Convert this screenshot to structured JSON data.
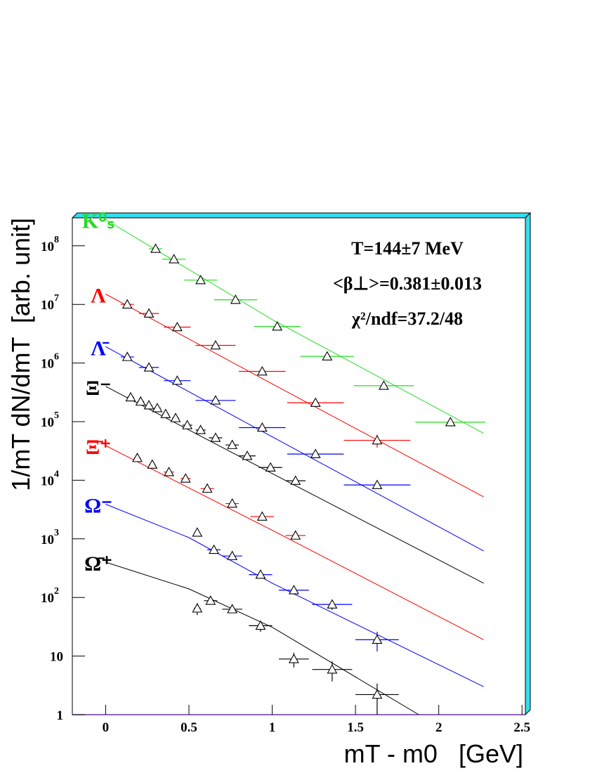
{
  "chart_data": {
    "type": "scatter",
    "xlabel": "mT - m0   [GeV]",
    "ylabel": "1/mT dN/dmT  [arb. unit]",
    "annotations": [
      "T=144±7 MeV",
      "<β⊥>=0.381±0.013",
      "χ²/ndf=37.2/48"
    ],
    "xlim": [
      -0.2,
      2.52
    ],
    "ylim": [
      1,
      300000000
    ],
    "log_y": true,
    "xticks": [
      0,
      0.5,
      1,
      1.5,
      2,
      2.5
    ],
    "yticks": [
      1,
      10,
      {
        "value": 100,
        "label": "10",
        "sup": "2"
      },
      {
        "value": 1000,
        "label": "10",
        "sup": "3"
      },
      {
        "value": 10000,
        "label": "10",
        "sup": "4"
      },
      {
        "value": 100000,
        "label": "10",
        "sup": "5"
      },
      {
        "value": 1000000,
        "label": "10",
        "sup": "6"
      },
      {
        "value": 10000000,
        "label": "10",
        "sup": "7"
      },
      {
        "value": 100000000,
        "label": "10",
        "sup": "8"
      }
    ],
    "series": [
      {
        "name": "K⁰ₛ",
        "color": "#22dd22",
        "x": [
          0.3,
          0.41,
          0.57,
          0.78,
          1.03,
          1.33,
          1.67,
          2.07
        ],
        "x_errors": [
          0.04,
          0.07,
          0.1,
          0.13,
          0.14,
          0.16,
          0.18,
          0.21
        ],
        "values": [
          89000000,
          59000000,
          26000000,
          12000000,
          4200000,
          1300000,
          410000,
          98000
        ],
        "y_errors": [
          3000000,
          2000000,
          1000000,
          500000,
          200000,
          80000,
          30000,
          15000
        ],
        "fit": {
          "x": [
            0,
            1.0,
            2.27
          ],
          "values": [
            280000000,
            5500000,
            63000
          ]
        }
      },
      {
        "name": "Λ",
        "color": "#ff0000",
        "x": [
          0.13,
          0.26,
          0.43,
          0.66,
          0.94,
          1.26,
          1.63
        ],
        "x_errors": [
          0.04,
          0.06,
          0.08,
          0.12,
          0.14,
          0.17,
          0.2
        ],
        "values": [
          10000000,
          7000000,
          4100000,
          2000000,
          720000,
          210000,
          48000
        ],
        "y_errors": [
          300000,
          200000,
          150000,
          80000,
          30000,
          15000,
          12000
        ],
        "fit": {
          "x": [
            0,
            1.0,
            2.27
          ],
          "values": [
            15000000,
            440000,
            5200
          ]
        }
      },
      {
        "name": "Λ̄",
        "color": "#0000ff",
        "x": [
          0.13,
          0.26,
          0.43,
          0.66,
          0.94,
          1.26,
          1.63
        ],
        "x_errors": [
          0.04,
          0.06,
          0.08,
          0.12,
          0.14,
          0.17,
          0.2
        ],
        "values": [
          1270000,
          840000,
          500000,
          230000,
          79000,
          28000,
          8300
        ],
        "y_errors": [
          40000,
          30000,
          20000,
          10000,
          4000,
          2000,
          1000
        ],
        "fit": {
          "x": [
            0,
            1.0,
            2.27
          ],
          "values": [
            1900000,
            55000,
            620
          ]
        }
      },
      {
        "name": "Ξ⁻",
        "color": "#000000",
        "x": [
          0.15,
          0.21,
          0.26,
          0.31,
          0.36,
          0.42,
          0.49,
          0.57,
          0.66,
          0.76,
          0.85,
          0.99,
          1.14
        ],
        "x_errors": [
          0.02,
          0.02,
          0.02,
          0.02,
          0.02,
          0.02,
          0.03,
          0.03,
          0.04,
          0.04,
          0.05,
          0.07,
          0.06
        ],
        "values": [
          260000,
          220000,
          190000,
          170000,
          135000,
          115000,
          87000,
          72000,
          53000,
          40000,
          26000,
          16500,
          9800
        ],
        "y_errors": [
          10000,
          9000,
          8000,
          7000,
          6000,
          5000,
          4000,
          3000,
          2500,
          2000,
          1500,
          1000,
          800
        ],
        "fit": {
          "x": [
            0,
            1.0,
            2.27
          ],
          "values": [
            400000,
            13000,
            175
          ]
        }
      },
      {
        "name": "Ξ̄⁺",
        "color": "#ff0000",
        "x": [
          0.19,
          0.28,
          0.38,
          0.48,
          0.61,
          0.76,
          0.94,
          1.14
        ],
        "x_errors": [
          0.02,
          0.02,
          0.03,
          0.03,
          0.04,
          0.04,
          0.07,
          0.06
        ],
        "values": [
          24000,
          18500,
          13800,
          10700,
          7200,
          4000,
          2400,
          1140
        ],
        "y_errors": [
          1000,
          800,
          600,
          500,
          400,
          250,
          150,
          100
        ],
        "fit": {
          "x": [
            0,
            1.0,
            2.27
          ],
          "values": [
            39000,
            1400,
            19
          ]
        }
      },
      {
        "name": "Ω⁻",
        "color": "#0000ff",
        "x": [
          0.55,
          0.65,
          0.76,
          0.93,
          1.13,
          1.36,
          1.63
        ],
        "x_errors": [
          0.01,
          0.04,
          0.06,
          0.07,
          0.09,
          0.12,
          0.13
        ],
        "values": [
          1280,
          650,
          510,
          245,
          133,
          76,
          19
        ],
        "y_errors": [
          120,
          70,
          60,
          35,
          20,
          15,
          7
        ],
        "fit": {
          "x": [
            0,
            0.5,
            1.0,
            2.27
          ],
          "values": [
            3900,
            1050,
            175,
            3
          ]
        }
      },
      {
        "name": "Ω̄⁺",
        "color": "#000000",
        "x": [
          0.55,
          0.63,
          0.76,
          0.93,
          1.13,
          1.36,
          1.63
        ],
        "x_errors": [
          0.02,
          0.04,
          0.06,
          0.07,
          0.09,
          0.12,
          0.13
        ],
        "values": [
          65,
          88,
          63,
          33,
          8.9,
          5.9,
          2.2
        ],
        "y_errors": [
          15,
          12,
          8,
          7,
          2.5,
          2.2,
          1.2
        ],
        "fit": {
          "x": [
            0,
            0.5,
            1.0,
            1.88
          ],
          "values": [
            400,
            140,
            31,
            1
          ]
        }
      }
    ]
  }
}
